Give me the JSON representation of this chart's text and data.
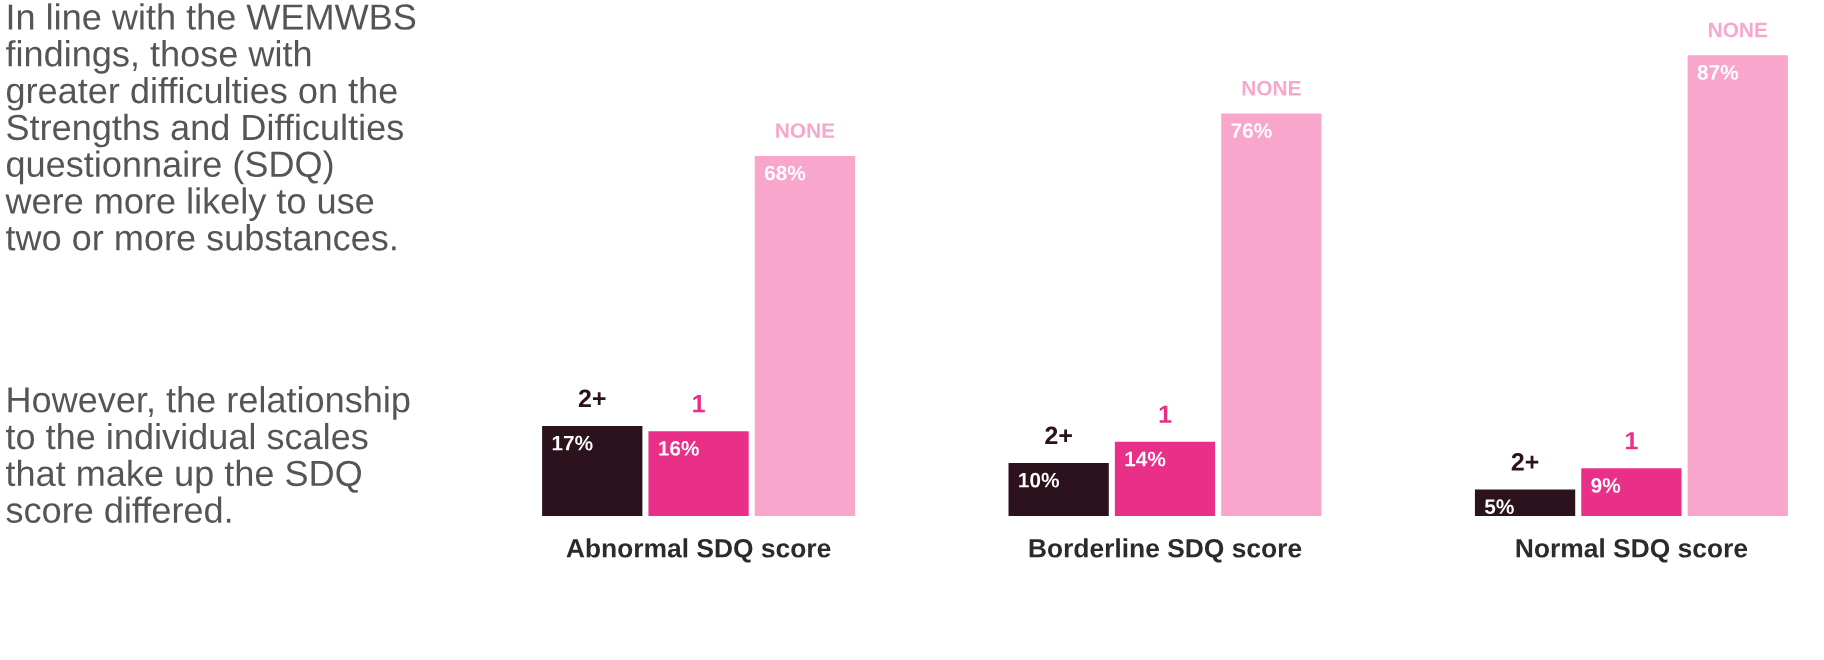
{
  "chart_data": {
    "type": "bar",
    "categories": [
      "Abnormal SDQ score",
      "Borderline SDQ score",
      "Normal SDQ score"
    ],
    "series": [
      {
        "name": "2+",
        "color": "#2b121d",
        "values": [
          17,
          10,
          5
        ],
        "value_labels": [
          "17%",
          "10%",
          "5%"
        ]
      },
      {
        "name": "1",
        "color": "#ea2f88",
        "values": [
          16,
          14,
          9
        ],
        "value_labels": [
          "16%",
          "14%",
          "9%"
        ]
      },
      {
        "name": "NONE",
        "color": "#f8a6cc",
        "values": [
          68,
          76,
          87
        ],
        "value_labels": [
          "68%",
          "76%",
          "87%"
        ]
      }
    ],
    "legend": false,
    "grid": false,
    "annotations": [
      "In line with the WEMWBS\nfindings, those with\ngreater difficulties on the\nStrengths and Difficulties\nquestionnaire (SDQ)\nwere more likely to use\ntwo or more substances.",
      "However, the relationship\nto the individual scales\nthat make up the SDQ\nscore differed."
    ]
  }
}
